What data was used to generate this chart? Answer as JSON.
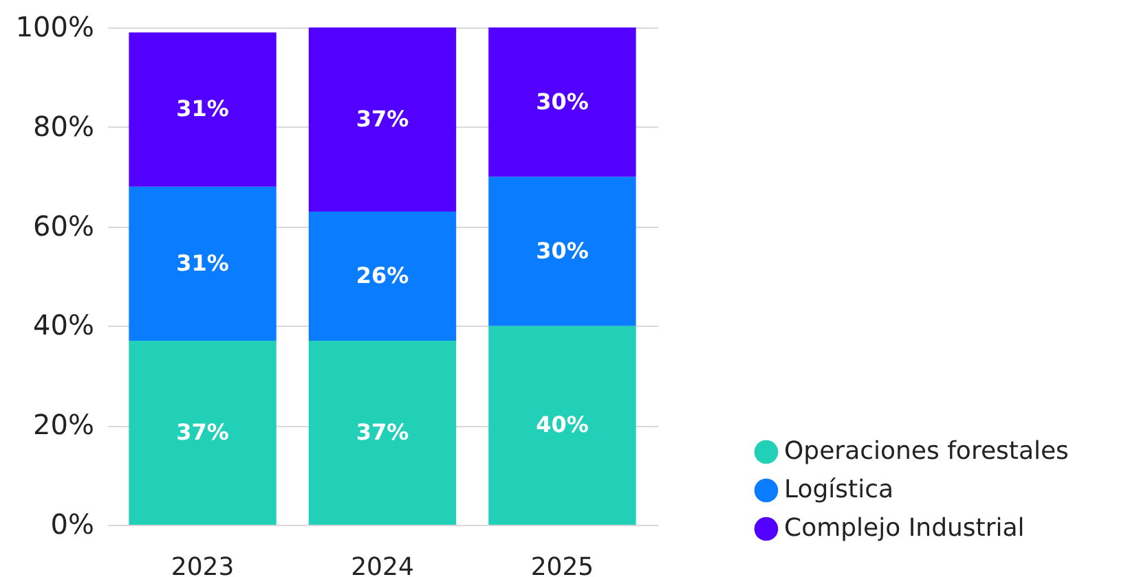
{
  "chart_data": {
    "type": "bar",
    "stacked": true,
    "categories": [
      "2023",
      "2024",
      "2025"
    ],
    "series": [
      {
        "name": "Operaciones forestales",
        "color": "#22d0b8",
        "values": [
          37,
          37,
          40
        ],
        "value_labels": [
          "37%",
          "37%",
          "40%"
        ]
      },
      {
        "name": "Logística",
        "color": "#0a7cff",
        "values": [
          31,
          26,
          30
        ],
        "value_labels": [
          "31%",
          "26%",
          "30%"
        ]
      },
      {
        "name": "Complejo Industrial",
        "color": "#5200ff",
        "values": [
          31,
          37,
          30
        ],
        "value_labels": [
          "31%",
          "37%",
          "30%"
        ]
      }
    ],
    "ylim": [
      0,
      100
    ],
    "yticks": [
      {
        "value": 0,
        "label": "0%"
      },
      {
        "value": 20,
        "label": "20%"
      },
      {
        "value": 40,
        "label": "40%"
      },
      {
        "value": 60,
        "label": "60%"
      },
      {
        "value": 80,
        "label": "80%"
      },
      {
        "value": 100,
        "label": "100%"
      }
    ],
    "grid": "y",
    "legend": "bottom right"
  }
}
